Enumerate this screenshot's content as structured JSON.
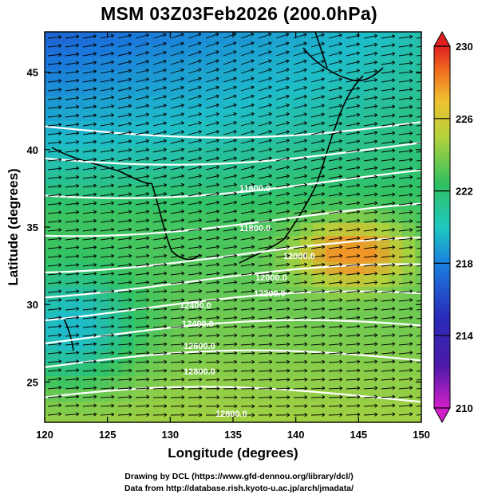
{
  "title": "MSM 03Z03Feb2026 (200.0hPa)",
  "x_axis": {
    "label": "Longitude (degrees)",
    "ticks": [
      120,
      125,
      130,
      135,
      140,
      145,
      150
    ],
    "range": [
      120,
      150
    ]
  },
  "y_axis": {
    "label": "Latitude  (degrees)",
    "ticks": [
      25,
      30,
      35,
      40,
      45
    ],
    "range": [
      22.4,
      47.6
    ]
  },
  "colorbar": {
    "min": 210,
    "max": 230,
    "tick_labels": [
      "230",
      "226",
      "222",
      "218",
      "214",
      "210"
    ],
    "tick_values": [
      230,
      226,
      222,
      218,
      214,
      210
    ]
  },
  "contour_labels": [
    "11600.0",
    "11800.0",
    "12000.0",
    "12000.0",
    "12200.0",
    "12400.0",
    "12400.0",
    "12600.0",
    "12800.0",
    "12800.0"
  ],
  "credits": [
    "Drawing by DCL (https://www.gfd-dennou.org/library/dcl/)",
    "Data from http://database.rish.kyoto-u.ac.jp/arch/jmadata/"
  ],
  "colors": {
    "cold": "#2a2ab8",
    "cool": "#1aa6d8",
    "mid": "#3cc46e",
    "warm": "#b4d23c",
    "hot": "#f0a030",
    "contour": "#ffffff",
    "vector": "#000000"
  }
}
